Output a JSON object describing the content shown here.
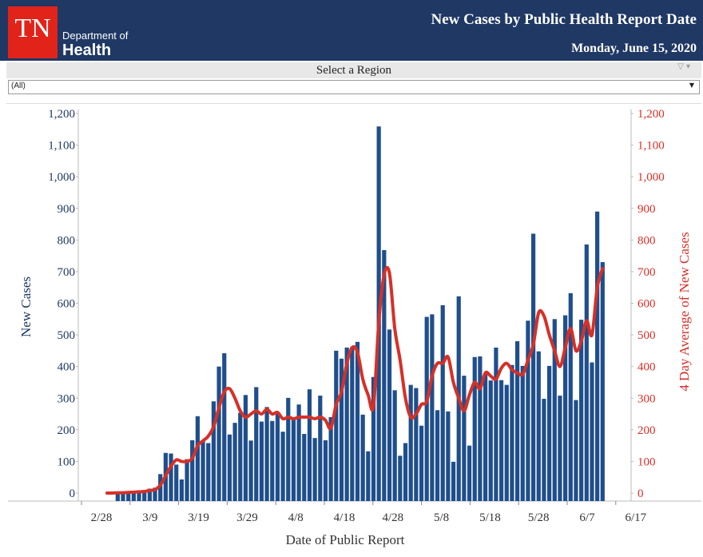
{
  "header": {
    "logo_text": "TN",
    "dept_line1": "Department of",
    "dept_line2": "Health",
    "title": "New Cases by Public Health Report Date",
    "date": "Monday, June 15, 2020"
  },
  "region": {
    "label": "Select a Region",
    "selected": "(All)"
  },
  "colors": {
    "header": "#1f3864",
    "bar": "#1f4e8c",
    "line": "#d63027",
    "logo": "#e2231a"
  },
  "icons": {
    "filter": "filter-icon",
    "dropdown": "chevron-down-icon"
  },
  "chart_data": {
    "type": "bar",
    "xlabel": "Date of Public Report",
    "ylabel": "New Cases",
    "y2label": "4 Day Average of New Cases",
    "ylim": [
      0,
      1200
    ],
    "y_ticks": [
      "0",
      "100",
      "200",
      "300",
      "400",
      "500",
      "600",
      "700",
      "800",
      "900",
      "1,000",
      "1,100",
      "1,200"
    ],
    "x_ticks": [
      "2/28",
      "3/9",
      "3/19",
      "3/29",
      "4/8",
      "4/18",
      "4/28",
      "5/8",
      "5/18",
      "5/28",
      "6/7",
      "6/17"
    ],
    "start_date": "3/5",
    "grid": false,
    "series": [
      {
        "name": "New Cases",
        "type": "bar",
        "values": [
          0,
          0,
          1,
          2,
          3,
          3,
          5,
          8,
          14,
          17,
          60,
          127,
          125,
          90,
          43,
          107,
          167,
          243,
          168,
          158,
          290,
          400,
          442,
          185,
          222,
          254,
          310,
          166,
          335,
          226,
          272,
          228,
          250,
          194,
          301,
          232,
          280,
          187,
          328,
          174,
          308,
          167,
          240,
          450,
          425,
          460,
          462,
          478,
          248,
          132,
          367,
          1159,
          768,
          517,
          325,
          118,
          158,
          342,
          332,
          213,
          557,
          565,
          262,
          594,
          258,
          99,
          622,
          371,
          150,
          430,
          432,
          378,
          356,
          460,
          357,
          342,
          405,
          480,
          402,
          545,
          820,
          448,
          298,
          402,
          550,
          308,
          562,
          632,
          294,
          548,
          786,
          413,
          890,
          730
        ],
        "color": "#1f4e8c"
      },
      {
        "name": "4 Day Average of New Cases",
        "type": "line",
        "values": [
          0,
          0,
          1,
          1,
          2,
          3,
          4,
          5,
          8,
          11,
          25,
          55,
          85,
          105,
          100,
          100,
          110,
          150,
          165,
          180,
          210,
          270,
          320,
          330,
          300,
          260,
          240,
          250,
          260,
          250,
          265,
          250,
          255,
          235,
          240,
          235,
          240,
          240,
          240,
          235,
          240,
          230,
          205,
          280,
          320,
          410,
          460,
          445,
          360,
          310,
          275,
          540,
          690,
          695,
          520,
          420,
          300,
          240,
          250,
          280,
          290,
          370,
          410,
          410,
          430,
          350,
          300,
          260,
          310,
          350,
          330,
          380,
          370,
          360,
          395,
          410,
          390,
          380,
          375,
          420,
          470,
          570,
          560,
          500,
          450,
          400,
          460,
          520,
          450,
          480,
          545,
          500,
          650,
          710
        ],
        "color": "#d63027"
      }
    ]
  }
}
